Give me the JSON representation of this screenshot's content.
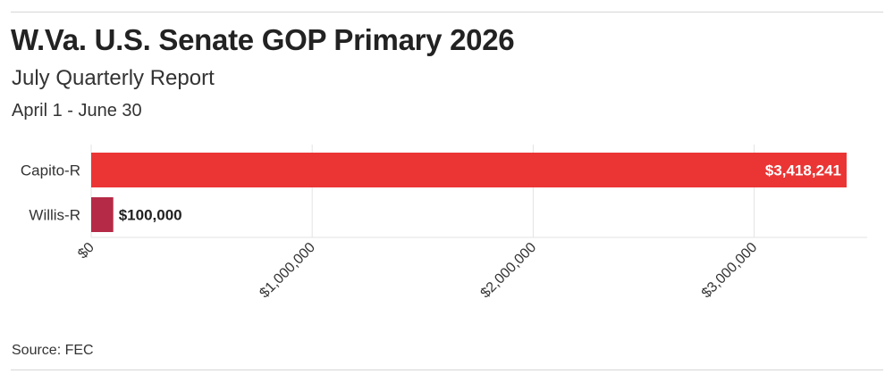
{
  "title": "W.Va. U.S. Senate GOP Primary 2026",
  "subtitle": "July Quarterly Report",
  "period": "April 1 - June 30",
  "source": "Source: FEC",
  "colors": {
    "capito": "#eb3535",
    "willis": "#b52a47",
    "grid": "#e3e3e3",
    "text": "#333333"
  },
  "chart_data": {
    "type": "bar",
    "orientation": "horizontal",
    "categories": [
      "Capito-R",
      "Willis-R"
    ],
    "values": [
      3418241,
      100000
    ],
    "value_labels": [
      "$3,418,241",
      "$100,000"
    ],
    "xlim": [
      0,
      3500000
    ],
    "x_ticks": [
      0,
      1000000,
      2000000,
      3000000
    ],
    "x_tick_labels": [
      "$0",
      "$1,000,000",
      "$2,000,000",
      "$3,000,000"
    ],
    "grid": true,
    "title": "W.Va. U.S. Senate GOP Primary 2026",
    "subtitle": "July Quarterly Report",
    "xlabel": "",
    "ylabel": ""
  }
}
